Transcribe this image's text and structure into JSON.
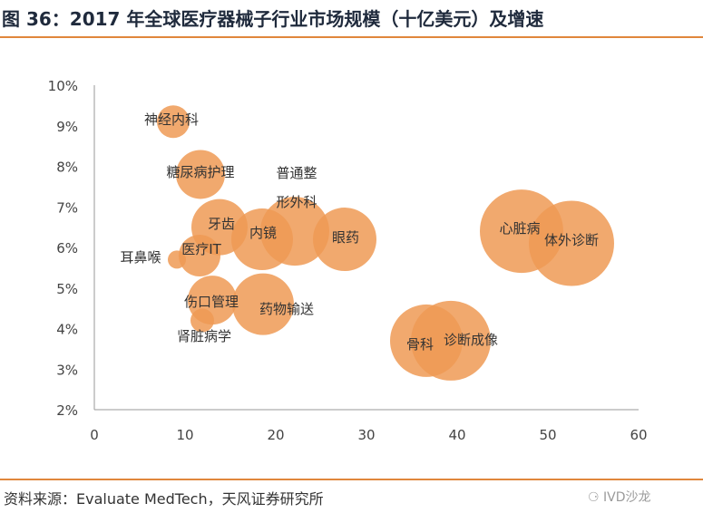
{
  "title": "图 36：2017 年全球医疗器械子行业市场规模（十亿美元）及增速",
  "source": "资料来源：Evaluate MedTech，天风证券研究所",
  "watermark": "IVD沙龙",
  "colors": {
    "accent": "#e0873c",
    "bubble": "#ef9a55"
  },
  "chart_data": {
    "type": "scatter",
    "xlim": [
      0,
      60
    ],
    "ylim": [
      2,
      10
    ],
    "x_ticks": [
      "0",
      "10",
      "20",
      "30",
      "40",
      "50",
      "60"
    ],
    "y_ticks": [
      "2%",
      "3%",
      "4%",
      "5%",
      "6%",
      "7%",
      "8%",
      "9%",
      "10%"
    ],
    "x_tick_values": [
      0,
      10,
      20,
      30,
      40,
      50,
      60
    ],
    "y_tick_values": [
      2,
      3,
      4,
      5,
      6,
      7,
      8,
      9,
      10
    ],
    "grid": false,
    "points": [
      {
        "label": "神经内科",
        "x": 8.7,
        "y": 9.1
      },
      {
        "label": "糖尿病护理",
        "x": 11.7,
        "y": 7.8
      },
      {
        "label": "牙齿",
        "x": 13.8,
        "y": 6.5
      },
      {
        "label": "医疗IT",
        "x": 11.6,
        "y": 5.8
      },
      {
        "label": "耳鼻喉",
        "x": 9.1,
        "y": 5.7
      },
      {
        "label": "内镜",
        "x": 18.5,
        "y": 6.2
      },
      {
        "label": "普通整形外科",
        "x": 22.1,
        "y": 6.4
      },
      {
        "label": "眼药",
        "x": 27.6,
        "y": 6.2
      },
      {
        "label": "伤口管理",
        "x": 13.0,
        "y": 4.7
      },
      {
        "label": "肾脏病学",
        "x": 11.9,
        "y": 4.2
      },
      {
        "label": "药物输送",
        "x": 18.6,
        "y": 4.6
      },
      {
        "label": "骨科",
        "x": 36.6,
        "y": 3.7
      },
      {
        "label": "诊断成像",
        "x": 39.3,
        "y": 3.7
      },
      {
        "label": "心脏病",
        "x": 47.1,
        "y": 6.4
      },
      {
        "label": "体外诊断",
        "x": 52.6,
        "y": 6.1
      }
    ]
  }
}
